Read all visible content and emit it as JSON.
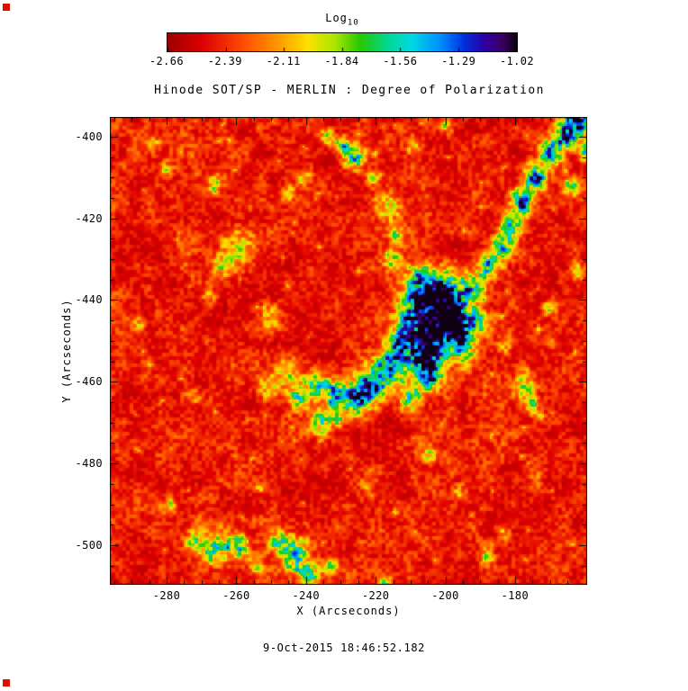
{
  "figure": {
    "title": "Hinode SOT/SP - MERLIN : Degree of Polarization",
    "colorbar_label": "Log",
    "colorbar_label_sub": "10",
    "timestamp": "9-Oct-2015 18:46:52.182"
  },
  "chart_data": {
    "type": "heatmap",
    "title": "Hinode SOT/SP - MERLIN : Degree of Polarization",
    "xlabel": "X (Arcseconds)",
    "ylabel": "Y (Arcseconds)",
    "xlim": [
      -296.3,
      -159.3
    ],
    "ylim": [
      -509.7,
      -395.2
    ],
    "x_ticks": [
      -280,
      -260,
      -240,
      -220,
      -200,
      -180
    ],
    "y_ticks": [
      -400,
      -420,
      -440,
      -460,
      -480,
      -500
    ],
    "grid": false,
    "colorbar": {
      "label": "Log10",
      "range": [
        -2.66,
        -1.02
      ],
      "ticks": [
        -2.66,
        -2.39,
        -2.11,
        -1.84,
        -1.56,
        -1.29,
        -1.02
      ]
    },
    "colormap_stops": [
      [
        0.0,
        "#9c0000"
      ],
      [
        0.1,
        "#e00000"
      ],
      [
        0.22,
        "#ff5000"
      ],
      [
        0.32,
        "#ff9c00"
      ],
      [
        0.4,
        "#ffe000"
      ],
      [
        0.48,
        "#a8e800"
      ],
      [
        0.55,
        "#28c800"
      ],
      [
        0.63,
        "#00d890"
      ],
      [
        0.7,
        "#00d8e8"
      ],
      [
        0.78,
        "#0090ff"
      ],
      [
        0.85,
        "#0030e0"
      ],
      [
        0.91,
        "#3000a0"
      ],
      [
        0.96,
        "#380060"
      ],
      [
        1.0,
        "#100014"
      ]
    ],
    "background_level_log10": -2.6,
    "description": "Mostly low polarization (red, ~10^-2.6) granular field with patches of enhanced polarization (green/cyan/blue up to ~10^-1) tracing the magnetic network: a large blue complex near (-210,-450), a diagonal blue chain in the upper-right corner, and smaller patches near the bottom around (-250,-502).",
    "blob_format": [
      "x_arcsec",
      "y_arcsec",
      "radius_arcsec",
      "intensity_0_to_1"
    ],
    "high_polarization_blobs": [
      [
        -206,
        -437,
        5,
        0.75
      ],
      [
        -199,
        -440,
        6,
        0.8
      ],
      [
        -210,
        -444,
        4,
        0.7
      ],
      [
        -202,
        -447,
        6,
        0.85
      ],
      [
        -196,
        -446,
        4,
        0.7
      ],
      [
        -213,
        -451,
        4,
        0.7
      ],
      [
        -206,
        -454,
        5,
        0.75
      ],
      [
        -217,
        -457,
        4,
        0.6
      ],
      [
        -221,
        -461,
        4,
        0.65
      ],
      [
        -226,
        -464,
        4,
        0.7
      ],
      [
        -232,
        -463,
        3,
        0.6
      ],
      [
        -237,
        -461,
        3,
        0.5
      ],
      [
        -242,
        -464,
        3,
        0.45
      ],
      [
        -210,
        -464,
        3,
        0.5
      ],
      [
        -204,
        -459,
        3,
        0.6
      ],
      [
        -236,
        -470,
        3,
        0.5
      ],
      [
        -231,
        -469,
        2,
        0.4
      ],
      [
        -245,
        -458,
        4,
        0.32
      ],
      [
        -251,
        -461,
        3,
        0.28
      ],
      [
        -194,
        -452,
        3,
        0.45
      ],
      [
        -190,
        -446,
        3,
        0.4
      ],
      [
        -162,
        -396,
        4,
        0.8
      ],
      [
        -166,
        -400,
        3,
        0.75
      ],
      [
        -170,
        -404,
        3,
        0.75
      ],
      [
        -174,
        -410,
        3,
        0.7
      ],
      [
        -178,
        -416,
        3,
        0.7
      ],
      [
        -181,
        -422,
        3,
        0.65
      ],
      [
        -184,
        -427,
        3,
        0.6
      ],
      [
        -188,
        -432,
        3,
        0.55
      ],
      [
        -192,
        -437,
        3,
        0.45
      ],
      [
        -160,
        -404,
        2,
        0.5
      ],
      [
        -164,
        -412,
        2,
        0.4
      ],
      [
        -226,
        -405,
        3,
        0.6
      ],
      [
        -230,
        -402,
        2,
        0.5
      ],
      [
        -234,
        -400,
        2,
        0.4
      ],
      [
        -240,
        -410,
        2,
        0.35
      ],
      [
        -245,
        -414,
        2,
        0.3
      ],
      [
        -216,
        -417,
        3,
        0.35
      ],
      [
        -214,
        -424,
        2,
        0.32
      ],
      [
        -215,
        -430,
        3,
        0.4
      ],
      [
        -209,
        -402,
        2,
        0.35
      ],
      [
        -200,
        -397,
        2,
        0.3
      ],
      [
        -221,
        -410,
        2,
        0.3
      ],
      [
        -259,
        -427,
        4,
        0.35
      ],
      [
        -264,
        -432,
        3,
        0.3
      ],
      [
        -268,
        -439,
        2,
        0.25
      ],
      [
        -250,
        -444,
        3,
        0.3
      ],
      [
        -272,
        -464,
        2,
        0.25
      ],
      [
        -284,
        -402,
        2,
        0.28
      ],
      [
        -280,
        -408,
        2,
        0.25
      ],
      [
        -266,
        -412,
        2,
        0.28
      ],
      [
        -288,
        -446,
        2,
        0.25
      ],
      [
        -279,
        -490,
        2,
        0.25
      ],
      [
        -272,
        -499,
        3,
        0.35
      ],
      [
        -266,
        -501,
        4,
        0.5
      ],
      [
        -259,
        -500,
        3,
        0.45
      ],
      [
        -248,
        -499,
        3,
        0.38
      ],
      [
        -243,
        -502,
        4,
        0.55
      ],
      [
        -239,
        -507,
        3,
        0.45
      ],
      [
        -254,
        -505,
        2,
        0.3
      ],
      [
        -233,
        -505,
        2,
        0.35
      ],
      [
        -217,
        -510,
        2,
        0.35
      ],
      [
        -177,
        -461,
        3,
        0.4
      ],
      [
        -175,
        -466,
        2,
        0.35
      ],
      [
        -183,
        -451,
        2,
        0.3
      ],
      [
        -170,
        -442,
        2,
        0.35
      ],
      [
        -162,
        -433,
        2,
        0.3
      ],
      [
        -174,
        -484,
        2,
        0.25
      ],
      [
        -188,
        -503,
        2,
        0.3
      ],
      [
        -183,
        -497,
        2,
        0.25
      ],
      [
        -196,
        -487,
        2,
        0.25
      ],
      [
        -205,
        -478,
        2,
        0.28
      ]
    ]
  }
}
